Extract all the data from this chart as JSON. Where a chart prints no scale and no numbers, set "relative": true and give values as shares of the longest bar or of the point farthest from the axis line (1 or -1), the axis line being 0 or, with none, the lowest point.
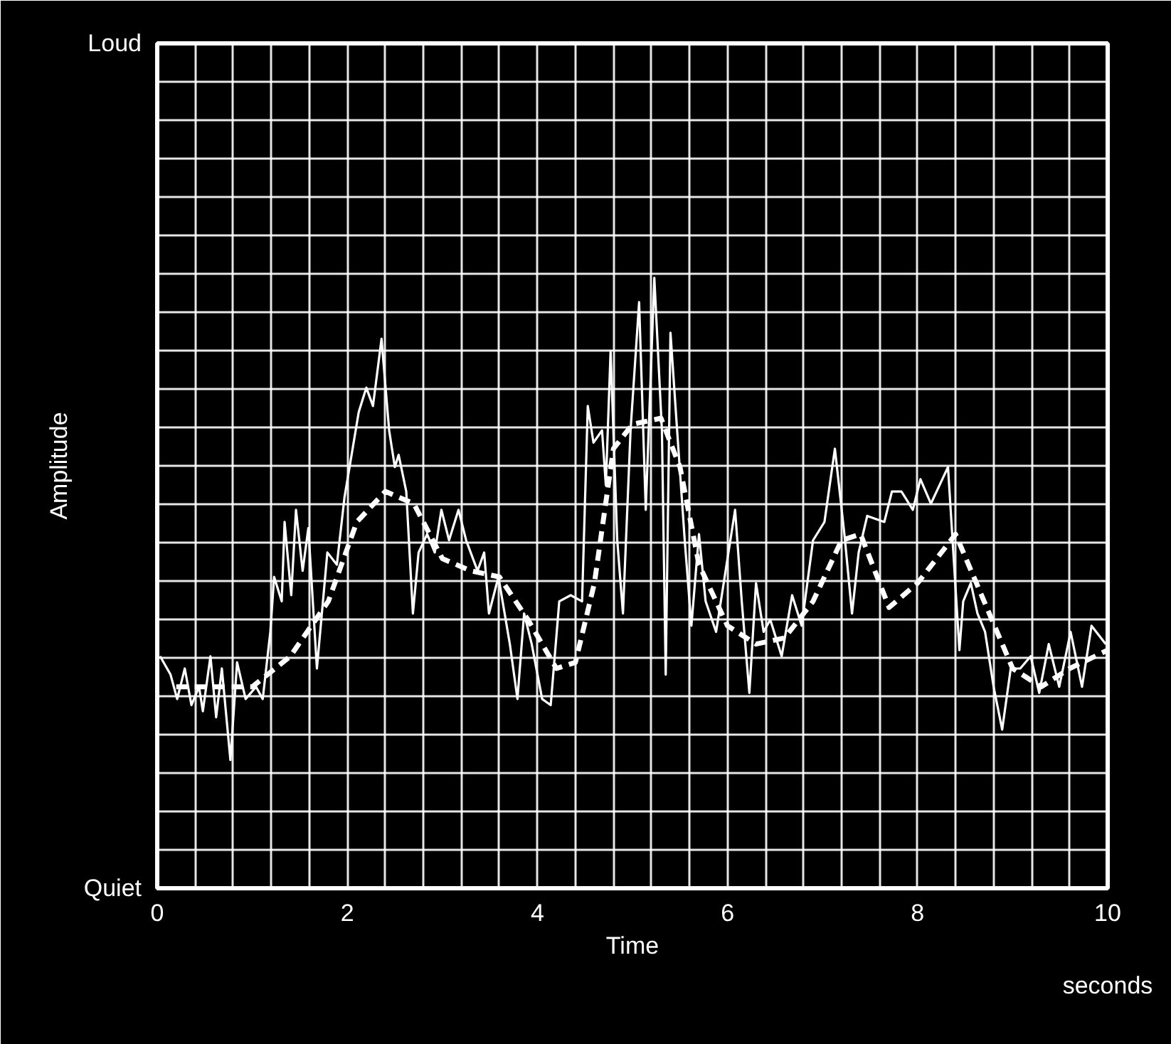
{
  "chart_data": {
    "type": "line",
    "xlabel": "Time",
    "ylabel": "Amplitude",
    "annotations": [
      "Loud",
      "Quiet",
      "seconds"
    ],
    "relative": true,
    "xlim": [
      0,
      10
    ],
    "xticks": [
      0,
      {
        "value": 0.4,
        "label": null
      },
      {
        "value": 0.8,
        "label": null
      },
      {
        "value": 1.2,
        "label": null
      },
      {
        "value": 1.6,
        "label": null
      },
      2,
      {
        "value": 2.4,
        "label": null
      },
      {
        "value": 2.8,
        "label": null
      },
      {
        "value": 3.2,
        "label": null
      },
      {
        "value": 3.6,
        "label": null
      },
      4,
      {
        "value": 4.4,
        "label": null
      },
      {
        "value": 4.8,
        "label": null
      },
      {
        "value": 5.2,
        "label": null
      },
      {
        "value": 5.6,
        "label": null
      },
      6,
      {
        "value": 6.4,
        "label": null
      },
      {
        "value": 6.8,
        "label": null
      },
      {
        "value": 7.2,
        "label": null
      },
      {
        "value": 7.6,
        "label": null
      },
      8,
      {
        "value": 8.4,
        "label": null
      },
      {
        "value": 8.8,
        "label": null
      },
      {
        "value": 9.2,
        "label": null
      },
      {
        "value": 9.6,
        "label": null
      },
      10
    ],
    "grid": true,
    "series": [
      {
        "color": "#ffffff",
        "line_style": "solid",
        "x": [
          0.03,
          0.14,
          0.21,
          0.29,
          0.36,
          0.44,
          0.48,
          0.56,
          0.62,
          0.68,
          0.77,
          0.84,
          0.93,
          1.04,
          1.11,
          1.19,
          1.23,
          1.31,
          1.34,
          1.41,
          1.46,
          1.53,
          1.59,
          1.68,
          1.79,
          1.89,
          1.97,
          2.12,
          2.2,
          2.27,
          2.36,
          2.44,
          2.5,
          2.54,
          2.62,
          2.69,
          2.75,
          2.84,
          2.92,
          2.99,
          3.07,
          3.17,
          3.25,
          3.37,
          3.44,
          3.49,
          3.59,
          3.71,
          3.79,
          3.86,
          3.94,
          4.05,
          4.14,
          4.23,
          4.35,
          4.47,
          4.53,
          4.59,
          4.68,
          4.72,
          4.77,
          4.84,
          4.9,
          4.98,
          5.07,
          5.14,
          5.23,
          5.31,
          5.35,
          5.4,
          5.47,
          5.55,
          5.62,
          5.7,
          5.77,
          5.88,
          6.08,
          6.15,
          6.23,
          6.3,
          6.38,
          6.45,
          6.57,
          6.68,
          6.78,
          6.9,
          7.02,
          7.13,
          7.23,
          7.31,
          7.38,
          7.47,
          7.65,
          7.73,
          7.83,
          7.95,
          8.03,
          8.14,
          8.26,
          8.32,
          8.44,
          8.48,
          8.56,
          8.63,
          8.71,
          8.8,
          8.89,
          8.98,
          9.08,
          9.19,
          9.28,
          9.38,
          9.49,
          9.61,
          9.73,
          9.83,
          9.98
        ],
        "values": [
          0.38,
          0.35,
          0.31,
          0.36,
          0.3,
          0.33,
          0.29,
          0.38,
          0.28,
          0.36,
          0.21,
          0.37,
          0.31,
          0.33,
          0.31,
          0.42,
          0.51,
          0.47,
          0.6,
          0.48,
          0.62,
          0.52,
          0.59,
          0.36,
          0.55,
          0.53,
          0.64,
          0.78,
          0.82,
          0.79,
          0.9,
          0.75,
          0.69,
          0.71,
          0.65,
          0.45,
          0.55,
          0.58,
          0.55,
          0.62,
          0.57,
          0.62,
          0.57,
          0.52,
          0.55,
          0.45,
          0.51,
          0.4,
          0.31,
          0.45,
          0.4,
          0.31,
          0.3,
          0.47,
          0.48,
          0.47,
          0.79,
          0.73,
          0.75,
          0.66,
          0.88,
          0.57,
          0.45,
          0.75,
          0.96,
          0.62,
          1,
          0.75,
          0.35,
          0.91,
          0.75,
          0.57,
          0.43,
          0.58,
          0.47,
          0.42,
          0.62,
          0.47,
          0.32,
          0.5,
          0.42,
          0.44,
          0.38,
          0.48,
          0.43,
          0.57,
          0.6,
          0.72,
          0.58,
          0.45,
          0.55,
          0.61,
          0.6,
          0.65,
          0.65,
          0.62,
          0.67,
          0.63,
          0.67,
          0.69,
          0.39,
          0.47,
          0.5,
          0.45,
          0.42,
          0.33,
          0.26,
          0.36,
          0.36,
          0.38,
          0.32,
          0.4,
          0.33,
          0.42,
          0.33,
          0.43,
          0.4
        ]
      },
      {
        "color": "#ffffff",
        "line_style": "dashed",
        "x": [
          0.2,
          0.6,
          1.0,
          1.4,
          1.8,
          2.1,
          2.4,
          2.7,
          3.0,
          3.3,
          3.6,
          3.9,
          4.2,
          4.4,
          4.6,
          4.8,
          5.0,
          5.3,
          5.5,
          5.7,
          6.0,
          6.3,
          6.6,
          6.9,
          7.2,
          7.4,
          7.7,
          8.0,
          8.4,
          8.7,
          9.0,
          9.3,
          9.6,
          10.0
        ],
        "values": [
          0.33,
          0.33,
          0.33,
          0.38,
          0.47,
          0.6,
          0.65,
          0.63,
          0.54,
          0.52,
          0.51,
          0.44,
          0.36,
          0.37,
          0.5,
          0.72,
          0.76,
          0.77,
          0.69,
          0.53,
          0.43,
          0.4,
          0.41,
          0.47,
          0.57,
          0.58,
          0.46,
          0.5,
          0.58,
          0.47,
          0.36,
          0.33,
          0.36,
          0.39
        ]
      }
    ]
  }
}
